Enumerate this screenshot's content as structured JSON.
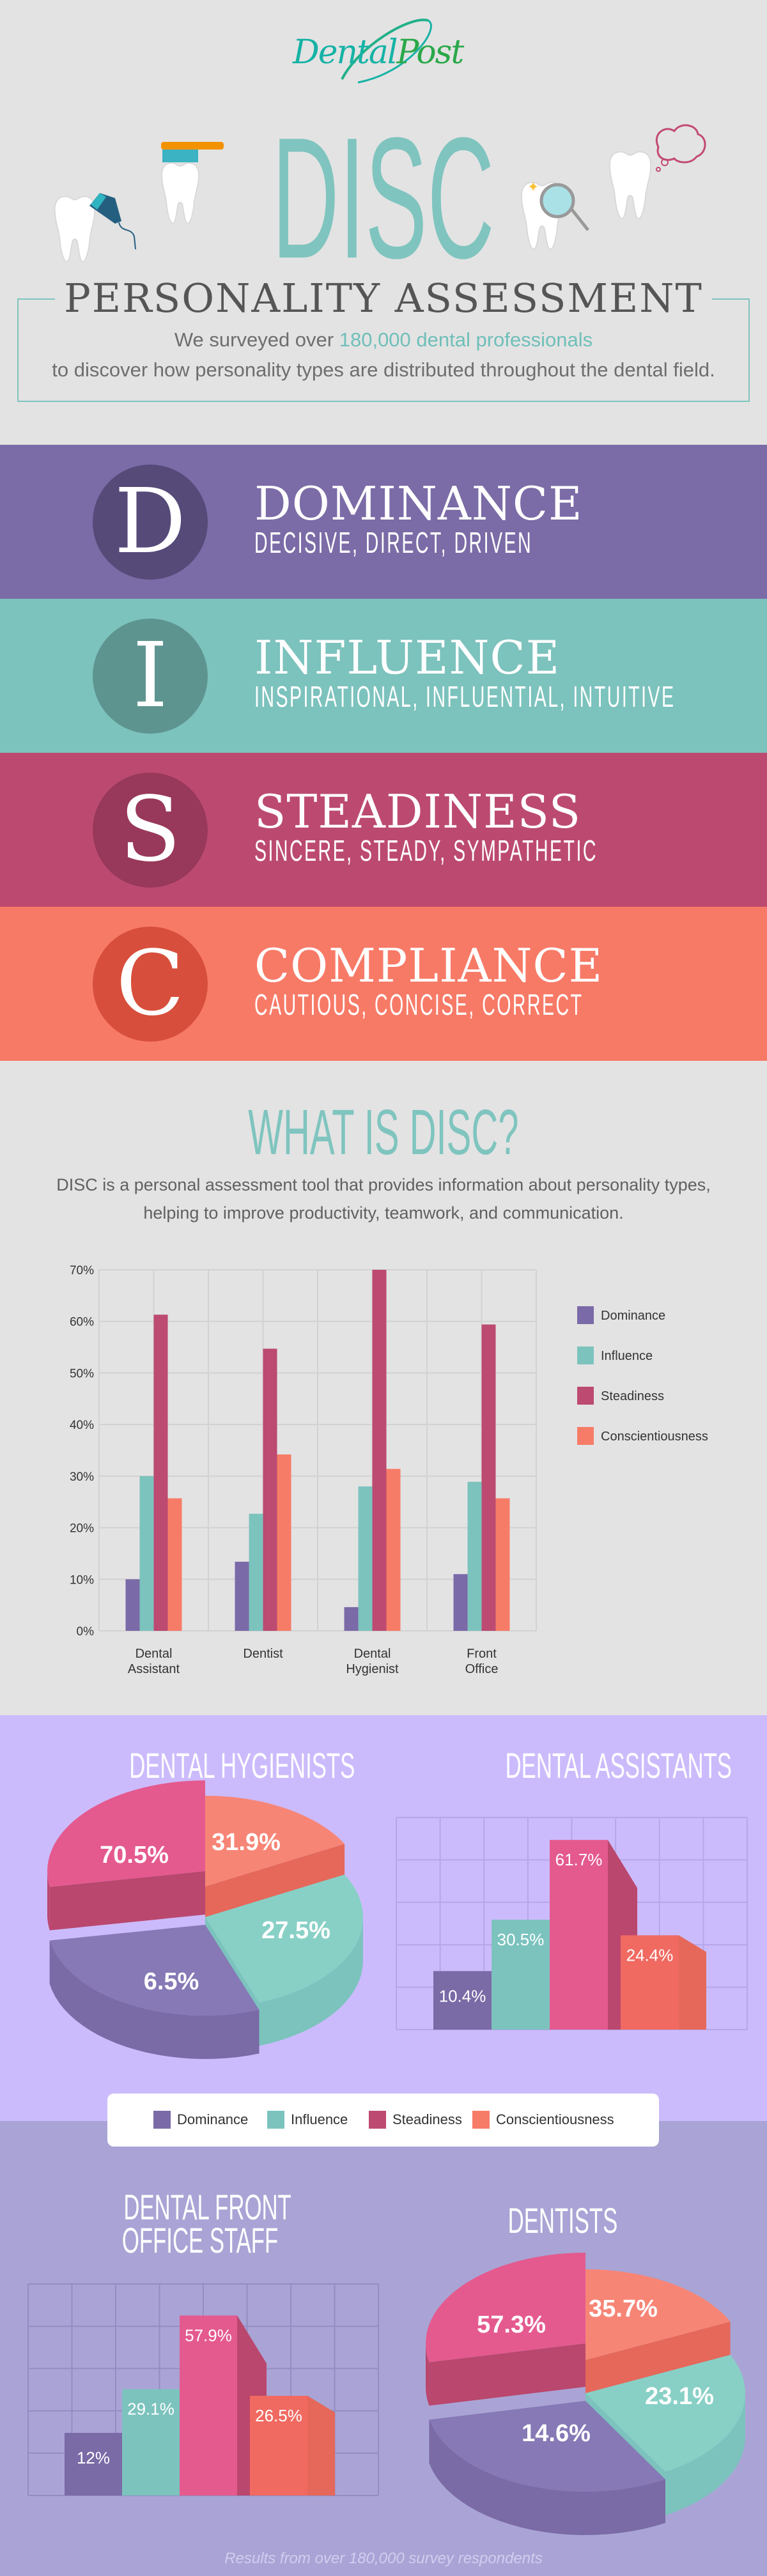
{
  "logo": {
    "part1": "Dental",
    "part2": "Post"
  },
  "hero": {
    "title": "DISC",
    "subtitle": "PERSONALITY ASSESSMENT",
    "intro_before": "We surveyed over ",
    "intro_highlight": "180,000 dental professionals",
    "intro_after": " to discover how personality types are distributed throughout the dental field."
  },
  "types": [
    {
      "letter": "D",
      "name": "DOMINANCE",
      "traits": "DECISIVE, DIRECT, DRIVEN",
      "color": "#7b6ba6",
      "circle_color": "#554a78"
    },
    {
      "letter": "I",
      "name": "INFLUENCE",
      "traits": "INSPIRATIONAL, INFLUENTIAL, INTUITIVE",
      "color": "#7cc2bd",
      "circle_color": "#5e9490"
    },
    {
      "letter": "S",
      "name": "STEADINESS",
      "traits": "SINCERE, STEADY, SYMPATHETIC",
      "color": "#bc4a70",
      "circle_color": "#98385b"
    },
    {
      "letter": "C",
      "name": "COMPLIANCE",
      "traits": "CAUTIOUS, CONCISE, CORRECT",
      "color": "#f77a67",
      "circle_color": "#d74f3c"
    }
  ],
  "what_is": {
    "heading": "WHAT IS DISC?",
    "text": "DISC is a personal assessment tool that provides information about personality types, helping to improve productivity, teamwork, and communication."
  },
  "legend": [
    {
      "label": "Dominance",
      "color": "#7b6aa8"
    },
    {
      "label": "Influence",
      "color": "#7cc3be"
    },
    {
      "label": "Steadiness",
      "color": "#bc4a71"
    },
    {
      "label": "Conscientiousness",
      "color": "#f77c68"
    }
  ],
  "chart_data": [
    {
      "type": "bar",
      "categories": [
        "Dental Assistant",
        "Dentist",
        "Dental Hygienist",
        "Front Office"
      ],
      "series": [
        {
          "name": "Dominance",
          "values": [
            10.0,
            13.4,
            4.6,
            11.0
          ],
          "color": "#7b6aa8"
        },
        {
          "name": "Influence",
          "values": [
            30.0,
            22.7,
            28.0,
            28.9
          ],
          "color": "#7cc3be"
        },
        {
          "name": "Steadiness",
          "values": [
            61.3,
            54.7,
            70.0,
            59.4
          ],
          "color": "#bc4a71"
        },
        {
          "name": "Conscientiousness",
          "values": [
            25.7,
            34.2,
            31.4,
            25.7
          ],
          "color": "#f77c68"
        }
      ],
      "ylim": [
        0,
        70
      ],
      "yticks": [
        "0%",
        "10%",
        "20%",
        "30%",
        "40%",
        "50%",
        "60%",
        "70%"
      ],
      "grid": true,
      "legend": "right"
    },
    {
      "type": "pie",
      "title": "DENTAL HYGIENISTS",
      "categories": [
        "Dominance",
        "Influence",
        "Steadiness",
        "Conscientiousness"
      ],
      "labels": [
        "6.5%",
        "27.5%",
        "70.5%",
        "31.9%"
      ],
      "values": [
        6.5,
        27.5,
        70.5,
        31.9
      ]
    },
    {
      "type": "bar",
      "title": "DENTAL ASSISTANTS",
      "categories": [
        "Dominance",
        "Influence",
        "Steadiness",
        "Conscientiousness"
      ],
      "labels": [
        "10.4%",
        "30.5%",
        "61.7%",
        "24.4%"
      ],
      "values": [
        10.4,
        30.5,
        61.7,
        24.4
      ]
    },
    {
      "type": "bar",
      "title": "DENTAL FRONT OFFICE STAFF",
      "title_lines": [
        "DENTAL FRONT",
        "OFFICE STAFF"
      ],
      "categories": [
        "Dominance",
        "Influence",
        "Steadiness",
        "Conscientiousness"
      ],
      "labels": [
        "12%",
        "29.1%",
        "57.9%",
        "26.5%"
      ],
      "values": [
        12,
        29.1,
        57.9,
        26.5
      ]
    },
    {
      "type": "pie",
      "title": "DENTISTS",
      "categories": [
        "Dominance",
        "Influence",
        "Steadiness",
        "Conscientiousness"
      ],
      "labels": [
        "14.6%",
        "23.1%",
        "57.3%",
        "35.7%"
      ],
      "values": [
        14.6,
        23.1,
        57.3,
        35.7
      ]
    }
  ],
  "footer": "Results from over 180,000 survey respondents"
}
